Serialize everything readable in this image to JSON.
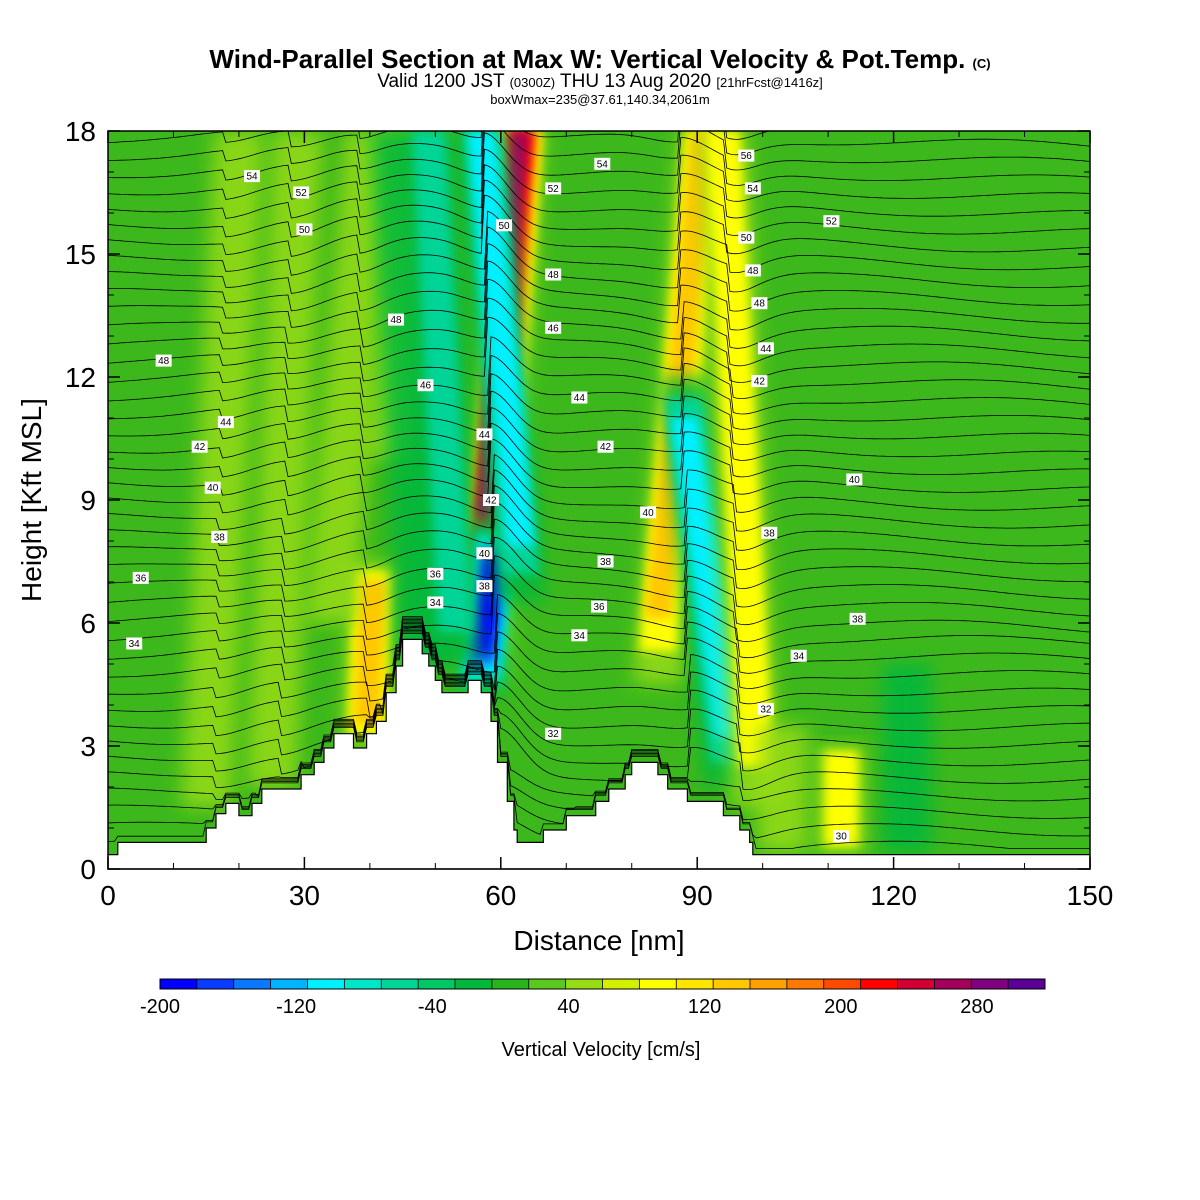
{
  "title": {
    "main": "Wind-Parallel Section at Max W: Vertical Velocity & Pot.Temp.",
    "copyright": "(C)",
    "valid_pre": "Valid 1200 JST",
    "valid_utc": "(0300Z)",
    "valid_date": "THU 13 Aug 2020",
    "forecast": "[21hrFcst@1416z]",
    "boxline": "boxWmax=235@37.61,140.34,2061m"
  },
  "colors": {
    "background_fill": "#3cb81c",
    "terrain": "#ffffff",
    "contour": "#000000"
  },
  "chart_data": {
    "type": "heatmap",
    "xlabel": "Distance [nm]",
    "ylabel": "Height [Kft MSL]",
    "xlim": [
      0,
      150
    ],
    "ylim": [
      0,
      18
    ],
    "x_ticks": [
      "0",
      "30",
      "60",
      "90",
      "120",
      "150"
    ],
    "y_ticks": [
      "0",
      "3",
      "6",
      "9",
      "12",
      "15",
      "18"
    ],
    "colorbar": {
      "label": "Vertical Velocity [cm/s]",
      "min": -200,
      "max": 320,
      "step": 20,
      "tick_labels": [
        "-200",
        "-120",
        "-40",
        "40",
        "120",
        "200",
        "280"
      ],
      "colors": [
        "#0000ff",
        "#0a3cff",
        "#0a78ff",
        "#00b4ff",
        "#00f0ff",
        "#00e6c8",
        "#00d496",
        "#00c864",
        "#00b83c",
        "#28b41c",
        "#5ac81e",
        "#96dc14",
        "#d2f000",
        "#ffff00",
        "#ffe600",
        "#ffc800",
        "#ffa000",
        "#ff7800",
        "#ff4b00",
        "#ff0000",
        "#d20032",
        "#a5005a",
        "#800080",
        "#5a0096"
      ]
    },
    "velocity_bands": [
      {
        "kind": "updraft",
        "x_bottom": 57.5,
        "x_top": 63,
        "y_bottom": 4.5,
        "y_top": 18,
        "peak_cm_s": 235
      },
      {
        "kind": "downdraft",
        "x_bottom": 57,
        "x_top": 59,
        "y_bottom": 4.2,
        "y_top": 8.5,
        "peak_cm_s": -200
      },
      {
        "kind": "downdraft",
        "x_bottom": 63,
        "x_top": 57,
        "y_bottom": 6.5,
        "y_top": 18,
        "peak_cm_s": -120
      },
      {
        "kind": "updraft",
        "x_bottom": 84,
        "x_top": 91,
        "y_bottom": 4.5,
        "y_top": 18,
        "peak_cm_s": 130
      },
      {
        "kind": "downdraft",
        "x_bottom": 95,
        "x_top": 88,
        "y_bottom": 2.0,
        "y_top": 12,
        "peak_cm_s": -120
      },
      {
        "kind": "updraft",
        "x_bottom": 99,
        "x_top": 94,
        "y_bottom": 1.5,
        "y_top": 18,
        "peak_cm_s": 60
      },
      {
        "kind": "updraft",
        "x_bottom": 39.5,
        "x_top": 40.5,
        "y_bottom": 3.0,
        "y_top": 7.5,
        "peak_cm_s": 100
      },
      {
        "kind": "updraft",
        "x_bottom": 34,
        "x_top": 40,
        "y_bottom": 6.0,
        "y_top": 18,
        "peak_cm_s": 40
      },
      {
        "kind": "updraft",
        "x_bottom": 43,
        "x_top": 47,
        "y_bottom": 10,
        "y_top": 18,
        "peak_cm_s": 40
      },
      {
        "kind": "downdraft",
        "x_bottom": 48,
        "x_top": 44,
        "y_bottom": 5.0,
        "y_top": 18,
        "peak_cm_s": -40
      },
      {
        "kind": "downdraft",
        "x_bottom": 53,
        "x_top": 49,
        "y_bottom": 5.0,
        "y_top": 18,
        "peak_cm_s": -60
      },
      {
        "kind": "updraft",
        "x_bottom": 15,
        "x_top": 20,
        "y_bottom": 1.5,
        "y_top": 18,
        "peak_cm_s": 40
      },
      {
        "kind": "updraft",
        "x_bottom": 25,
        "x_top": 29,
        "y_bottom": 2.0,
        "y_top": 18,
        "peak_cm_s": 40
      },
      {
        "kind": "updraft",
        "x_bottom": 112,
        "x_top": 112,
        "y_bottom": 0.4,
        "y_top": 3.0,
        "peak_cm_s": 60
      },
      {
        "kind": "updraft",
        "x_bottom": 103,
        "x_top": 103,
        "y_bottom": 0.4,
        "y_top": 3.5,
        "peak_cm_s": 40
      },
      {
        "kind": "downdraft",
        "x_bottom": 122,
        "x_top": 122,
        "y_bottom": 0.4,
        "y_top": 5.0,
        "peak_cm_s": -20
      }
    ],
    "terrain_profile": [
      [
        0,
        0.35
      ],
      [
        1.5,
        0.35
      ],
      [
        1.5,
        0.65
      ],
      [
        15,
        0.65
      ],
      [
        15,
        1.0
      ],
      [
        16.5,
        1.0
      ],
      [
        16.5,
        1.35
      ],
      [
        18,
        1.35
      ],
      [
        18,
        1.6
      ],
      [
        20,
        1.6
      ],
      [
        20,
        1.3
      ],
      [
        22,
        1.3
      ],
      [
        22,
        1.6
      ],
      [
        23.5,
        1.6
      ],
      [
        23.5,
        1.95
      ],
      [
        29.5,
        1.95
      ],
      [
        29.5,
        2.3
      ],
      [
        31.5,
        2.3
      ],
      [
        31.5,
        2.6
      ],
      [
        33,
        2.6
      ],
      [
        33,
        2.95
      ],
      [
        34.5,
        2.95
      ],
      [
        34.5,
        3.3
      ],
      [
        37.5,
        3.3
      ],
      [
        37.5,
        2.95
      ],
      [
        39.5,
        2.95
      ],
      [
        39.5,
        3.3
      ],
      [
        41,
        3.3
      ],
      [
        41,
        3.6
      ],
      [
        42.5,
        3.6
      ],
      [
        42.5,
        4.3
      ],
      [
        44,
        4.3
      ],
      [
        44,
        4.95
      ],
      [
        45,
        4.95
      ],
      [
        45,
        5.6
      ],
      [
        48,
        5.6
      ],
      [
        48,
        5.25
      ],
      [
        49,
        5.25
      ],
      [
        49,
        4.95
      ],
      [
        50,
        4.95
      ],
      [
        50,
        4.6
      ],
      [
        51,
        4.6
      ],
      [
        51,
        4.3
      ],
      [
        55,
        4.3
      ],
      [
        55,
        4.6
      ],
      [
        57,
        4.6
      ],
      [
        57,
        4.3
      ],
      [
        58.5,
        4.3
      ],
      [
        58.5,
        3.6
      ],
      [
        59.5,
        3.6
      ],
      [
        59.5,
        2.6
      ],
      [
        61,
        2.6
      ],
      [
        61,
        1.65
      ],
      [
        62,
        1.65
      ],
      [
        62,
        0.95
      ],
      [
        62.5,
        0.95
      ],
      [
        62.5,
        0.65
      ],
      [
        66.5,
        0.65
      ],
      [
        66.5,
        0.95
      ],
      [
        70,
        0.95
      ],
      [
        70,
        1.3
      ],
      [
        74.5,
        1.3
      ],
      [
        74.5,
        1.65
      ],
      [
        76.5,
        1.65
      ],
      [
        76.5,
        1.95
      ],
      [
        79,
        1.95
      ],
      [
        79,
        2.3
      ],
      [
        80,
        2.3
      ],
      [
        80,
        2.6
      ],
      [
        84,
        2.6
      ],
      [
        84,
        2.3
      ],
      [
        85.5,
        2.3
      ],
      [
        85.5,
        1.95
      ],
      [
        88.5,
        1.95
      ],
      [
        88.5,
        1.65
      ],
      [
        94,
        1.65
      ],
      [
        94,
        1.3
      ],
      [
        96.5,
        1.3
      ],
      [
        96.5,
        0.95
      ],
      [
        98,
        0.95
      ],
      [
        98,
        0.65
      ],
      [
        98.5,
        0.65
      ],
      [
        98.5,
        0.35
      ],
      [
        150,
        0.35
      ],
      [
        150,
        0
      ],
      [
        0,
        0
      ]
    ],
    "isentrope_labels": [
      {
        "text": "54",
        "x": 22,
        "y": 16.9
      },
      {
        "text": "52",
        "x": 29.5,
        "y": 16.5
      },
      {
        "text": "50",
        "x": 30,
        "y": 15.6
      },
      {
        "text": "48",
        "x": 44,
        "y": 13.4
      },
      {
        "text": "48",
        "x": 8.5,
        "y": 12.4
      },
      {
        "text": "46",
        "x": 48.5,
        "y": 11.8
      },
      {
        "text": "44",
        "x": 18,
        "y": 10.9
      },
      {
        "text": "42",
        "x": 14,
        "y": 10.3
      },
      {
        "text": "40",
        "x": 16,
        "y": 9.3
      },
      {
        "text": "38",
        "x": 17,
        "y": 8.1
      },
      {
        "text": "36",
        "x": 5,
        "y": 7.1
      },
      {
        "text": "34",
        "x": 4,
        "y": 5.5
      },
      {
        "text": "36",
        "x": 50,
        "y": 7.2
      },
      {
        "text": "34",
        "x": 50,
        "y": 6.5
      },
      {
        "text": "44",
        "x": 57.5,
        "y": 10.6
      },
      {
        "text": "42",
        "x": 58.5,
        "y": 9.0
      },
      {
        "text": "40",
        "x": 57.5,
        "y": 7.7
      },
      {
        "text": "38",
        "x": 57.5,
        "y": 6.9
      },
      {
        "text": "50",
        "x": 60.5,
        "y": 15.7
      },
      {
        "text": "52",
        "x": 68,
        "y": 16.6
      },
      {
        "text": "54",
        "x": 75.5,
        "y": 17.2
      },
      {
        "text": "48",
        "x": 68,
        "y": 14.5
      },
      {
        "text": "46",
        "x": 68,
        "y": 13.2
      },
      {
        "text": "44",
        "x": 72,
        "y": 11.5
      },
      {
        "text": "42",
        "x": 76,
        "y": 10.3
      },
      {
        "text": "40",
        "x": 82.5,
        "y": 8.7
      },
      {
        "text": "38",
        "x": 76,
        "y": 7.5
      },
      {
        "text": "36",
        "x": 75,
        "y": 6.4
      },
      {
        "text": "34",
        "x": 72,
        "y": 5.7
      },
      {
        "text": "32",
        "x": 68,
        "y": 3.3
      },
      {
        "text": "56",
        "x": 97.5,
        "y": 17.4
      },
      {
        "text": "54",
        "x": 98.5,
        "y": 16.6
      },
      {
        "text": "50",
        "x": 97.5,
        "y": 15.4
      },
      {
        "text": "48",
        "x": 98.5,
        "y": 14.6
      },
      {
        "text": "48",
        "x": 99.5,
        "y": 13.8
      },
      {
        "text": "44",
        "x": 100.5,
        "y": 12.7
      },
      {
        "text": "42",
        "x": 99.5,
        "y": 11.9
      },
      {
        "text": "52",
        "x": 110.5,
        "y": 15.8
      },
      {
        "text": "40",
        "x": 114,
        "y": 9.5
      },
      {
        "text": "38",
        "x": 101,
        "y": 8.2
      },
      {
        "text": "38",
        "x": 114.5,
        "y": 6.1
      },
      {
        "text": "34",
        "x": 105.5,
        "y": 5.2
      },
      {
        "text": "32",
        "x": 100.5,
        "y": 3.9
      },
      {
        "text": "30",
        "x": 112,
        "y": 0.8
      }
    ]
  }
}
